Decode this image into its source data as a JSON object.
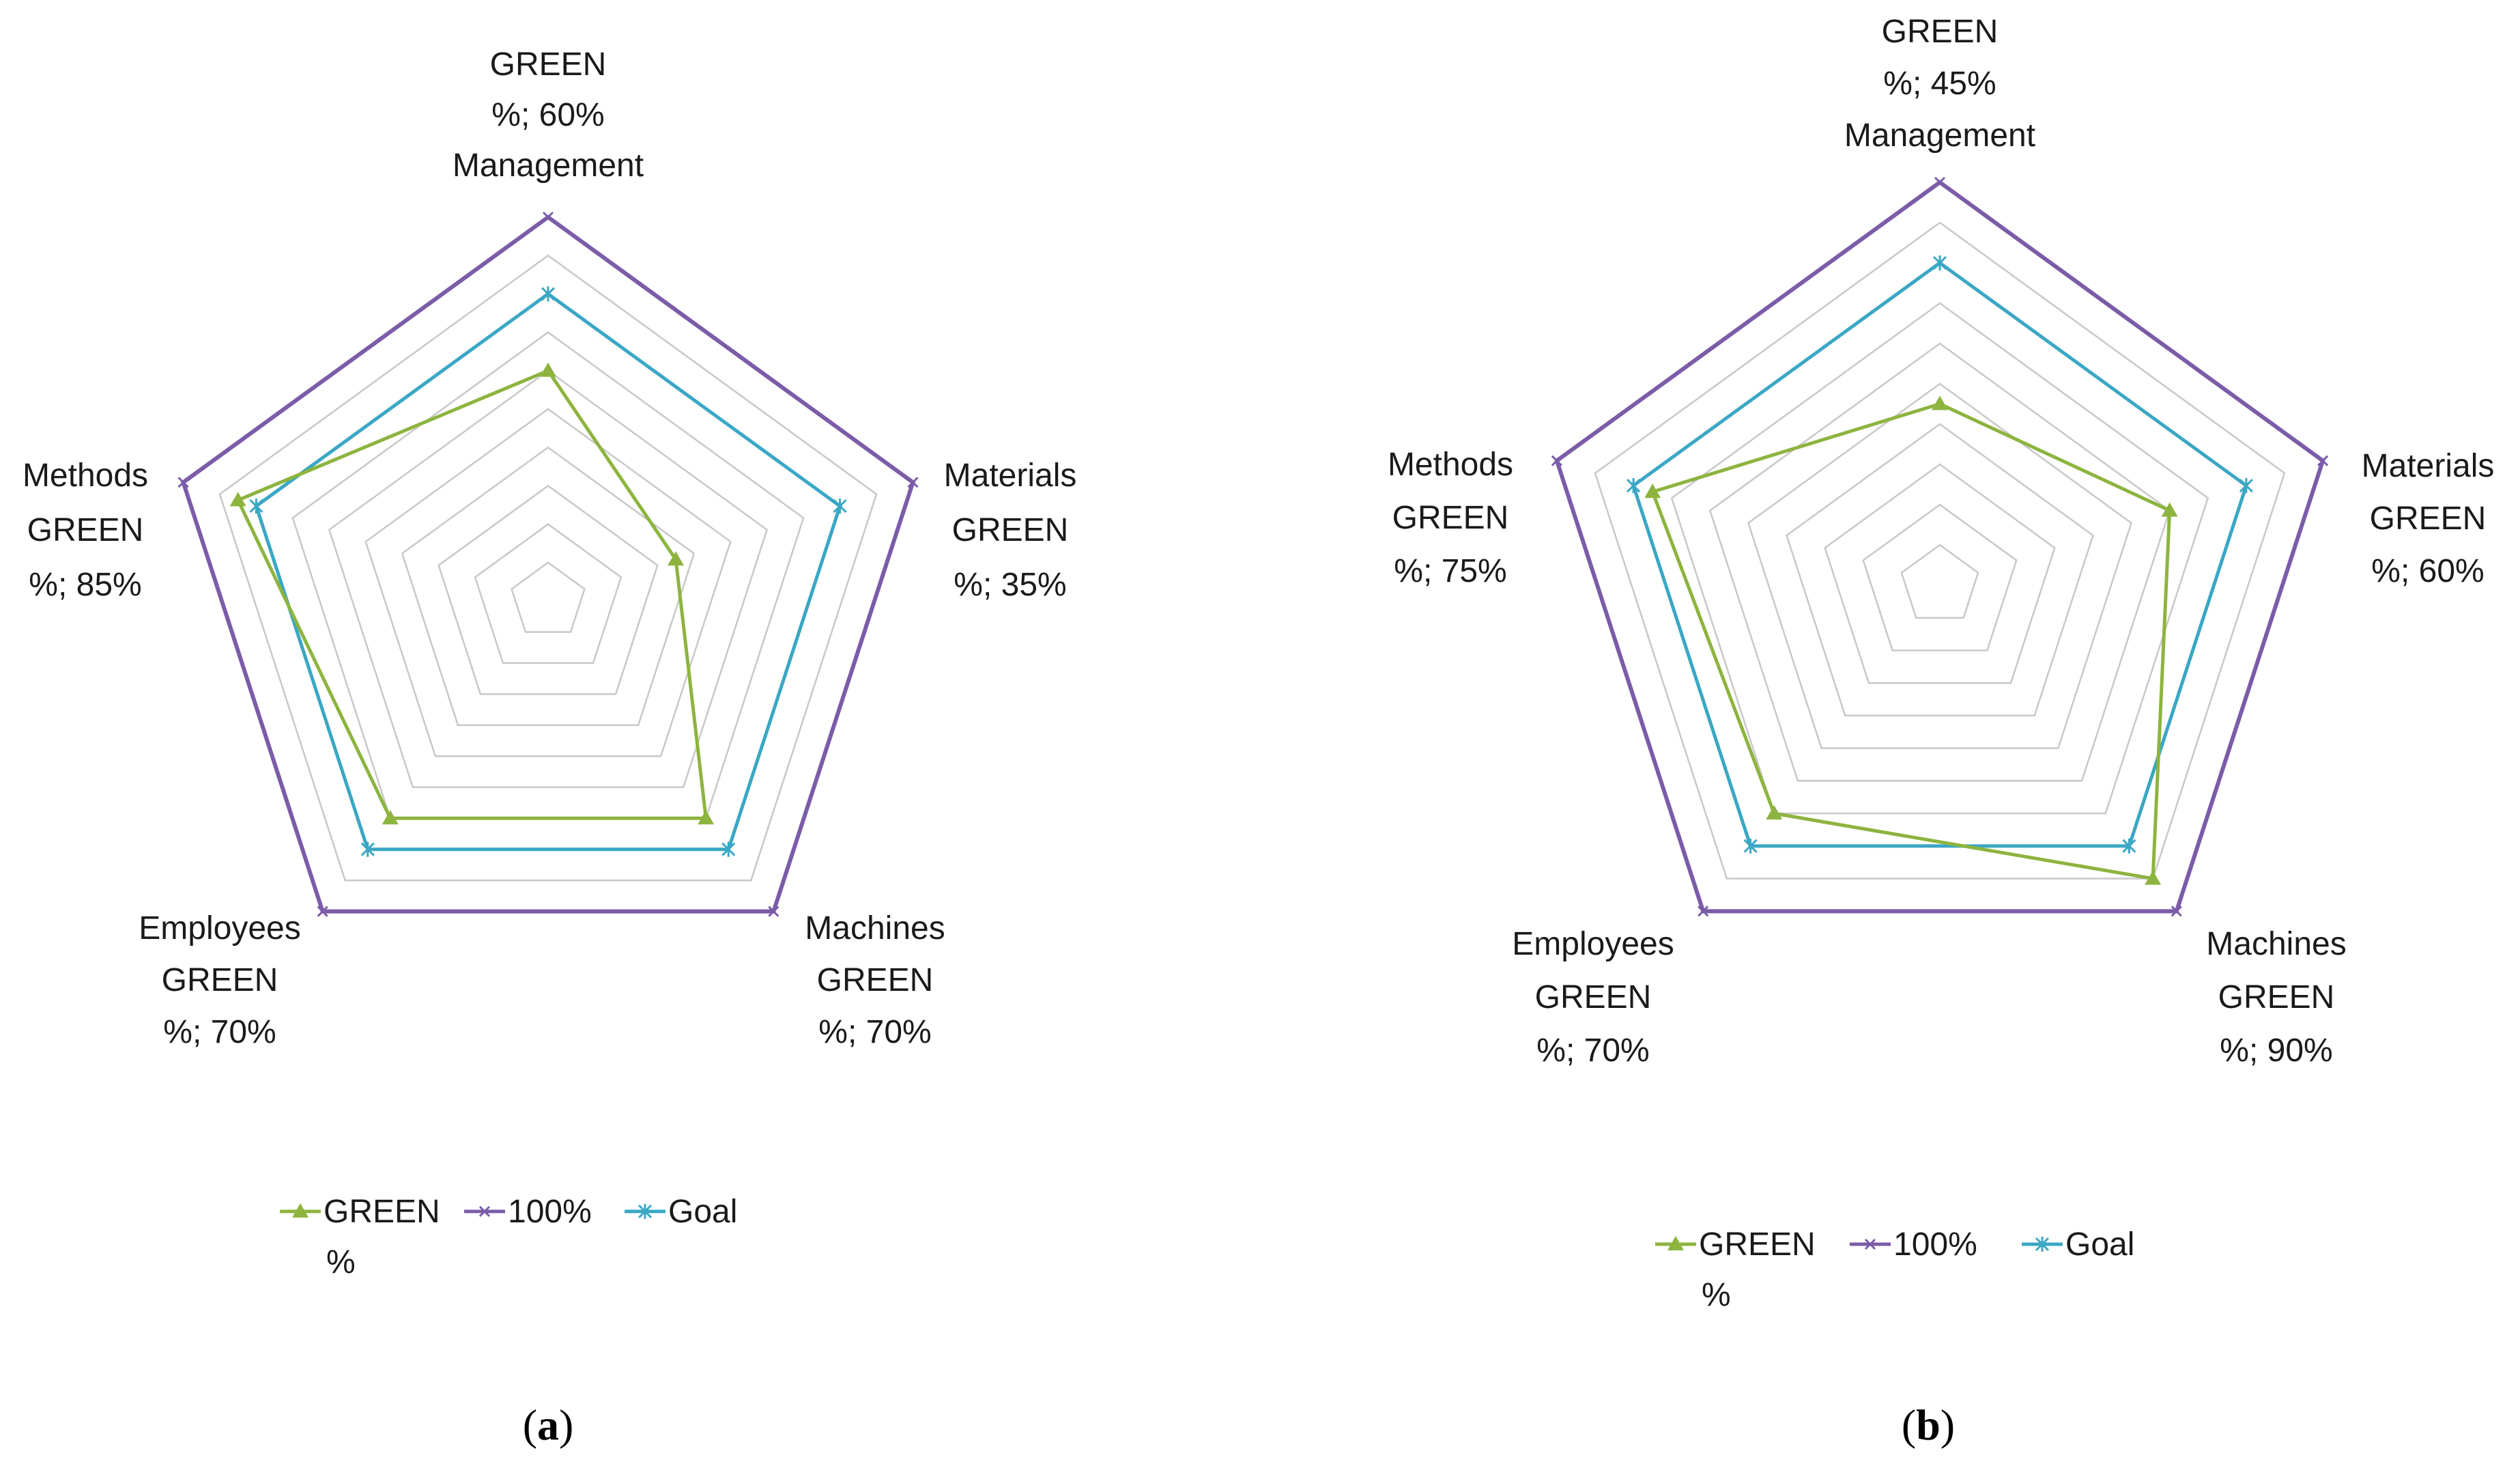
{
  "colors": {
    "green": "#8db43f",
    "full": "#7b5ca8",
    "goal": "#3aa7c4",
    "grid": "#c8c8c8"
  },
  "chart_data": [
    {
      "type": "radar",
      "panel": "a",
      "caption": {
        "open": "(",
        "letter": "a",
        "close": ")"
      },
      "rings": 10,
      "range": [
        0,
        100
      ],
      "categories": [
        {
          "name": "Management",
          "label_lines": [
            "GREEN",
            "%; 60%",
            "Management"
          ]
        },
        {
          "name": "Materials",
          "label_lines": [
            "Materials",
            "GREEN",
            "%; 35%"
          ]
        },
        {
          "name": "Machines",
          "label_lines": [
            "Machines",
            "GREEN",
            "%; 70%"
          ]
        },
        {
          "name": "Employees",
          "label_lines": [
            "Employees",
            "GREEN",
            "%; 70%"
          ]
        },
        {
          "name": "Methods",
          "label_lines": [
            "Methods",
            "GREEN",
            "%; 85%"
          ]
        }
      ],
      "series": [
        {
          "key": "green",
          "name": "GREEN %",
          "values": [
            60,
            35,
            70,
            70,
            85
          ],
          "marker": "triangle"
        },
        {
          "key": "full",
          "name": "100%",
          "values": [
            100,
            100,
            100,
            100,
            100
          ],
          "marker": "x"
        },
        {
          "key": "goal",
          "name": "Goal",
          "values": [
            80,
            80,
            80,
            80,
            80
          ],
          "marker": "star"
        }
      ],
      "legend": {
        "position": "bottom",
        "items": [
          {
            "key": "green",
            "line1": "GREEN",
            "line2": "%"
          },
          {
            "key": "full",
            "line1": "100%",
            "line2": ""
          },
          {
            "key": "goal",
            "line1": "Goal",
            "line2": ""
          }
        ]
      }
    },
    {
      "type": "radar",
      "panel": "b",
      "caption": {
        "open": "(",
        "letter": "b",
        "close": ")"
      },
      "rings": 10,
      "range": [
        0,
        100
      ],
      "categories": [
        {
          "name": "Management",
          "label_lines": [
            "GREEN",
            "%; 45%",
            "Management"
          ]
        },
        {
          "name": "Materials",
          "label_lines": [
            "Materials",
            "GREEN",
            "%; 60%"
          ]
        },
        {
          "name": "Machines",
          "label_lines": [
            "Machines",
            "GREEN",
            "%; 90%"
          ]
        },
        {
          "name": "Employees",
          "label_lines": [
            "Employees",
            "GREEN",
            "%; 70%"
          ]
        },
        {
          "name": "Methods",
          "label_lines": [
            "Methods",
            "GREEN",
            "%; 75%"
          ]
        }
      ],
      "series": [
        {
          "key": "green",
          "name": "GREEN %",
          "values": [
            45,
            60,
            90,
            70,
            75
          ],
          "marker": "triangle"
        },
        {
          "key": "full",
          "name": "100%",
          "values": [
            100,
            100,
            100,
            100,
            100
          ],
          "marker": "x"
        },
        {
          "key": "goal",
          "name": "Goal",
          "values": [
            80,
            80,
            80,
            80,
            80
          ],
          "marker": "star"
        }
      ],
      "legend": {
        "position": "bottom",
        "items": [
          {
            "key": "green",
            "line1": "GREEN",
            "line2": "%"
          },
          {
            "key": "full",
            "line1": "100%",
            "line2": ""
          },
          {
            "key": "goal",
            "line1": "Goal",
            "line2": ""
          }
        ]
      }
    }
  ]
}
